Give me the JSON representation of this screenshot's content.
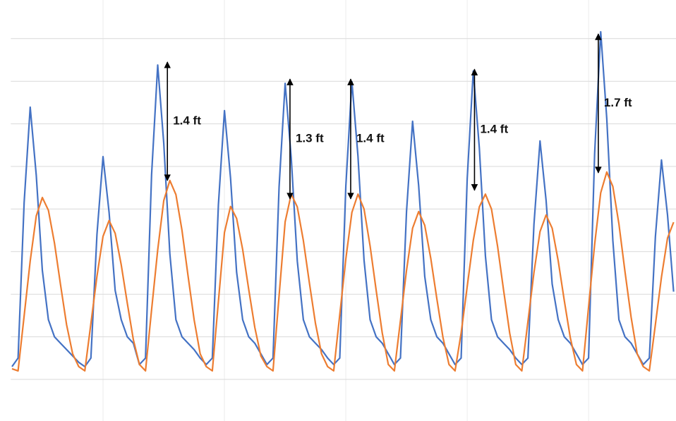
{
  "chart_data": {
    "type": "line",
    "x": [
      5,
      6,
      7,
      8,
      9,
      10,
      11,
      12,
      13,
      14,
      15,
      16,
      17,
      18,
      19,
      20,
      21,
      22,
      23,
      24,
      25,
      26,
      27,
      28,
      29,
      30,
      31,
      32,
      33,
      34,
      35,
      36,
      37,
      38,
      39,
      40,
      41,
      42,
      43,
      44,
      45,
      46,
      47,
      48,
      49,
      50,
      51,
      52,
      53,
      54,
      55,
      56,
      57,
      58,
      59,
      60,
      61,
      62,
      63,
      64,
      65,
      66,
      67,
      68,
      69,
      70,
      71,
      72,
      73,
      74,
      75,
      76,
      77,
      78,
      79,
      80,
      81,
      82,
      83,
      84,
      85,
      86,
      87,
      88,
      89,
      90,
      91,
      92,
      93,
      94,
      95,
      96,
      97,
      98,
      99,
      100,
      101,
      102,
      103,
      104,
      105,
      106,
      107,
      108,
      109,
      110,
      111,
      112,
      113,
      114
    ],
    "series": [
      {
        "color": "#4472c4",
        "values": [
          0.3,
          0.5,
          4.15,
          6.39,
          4.79,
          2.56,
          1.4,
          1.0,
          0.85,
          0.7,
          0.55,
          0.4,
          0.3,
          0.5,
          3.4,
          5.23,
          3.92,
          2.09,
          1.4,
          1.0,
          0.85,
          0.35,
          0.5,
          4.8,
          7.38,
          5.54,
          2.95,
          1.4,
          1.0,
          0.85,
          0.7,
          0.5,
          0.35,
          0.5,
          4.1,
          6.31,
          4.73,
          2.52,
          1.4,
          1.0,
          0.85,
          0.6,
          0.35,
          0.5,
          4.52,
          6.95,
          5.21,
          2.78,
          1.4,
          1.0,
          0.85,
          0.7,
          0.5,
          0.35,
          0.5,
          4.54,
          6.99,
          5.24,
          2.8,
          1.4,
          1.0,
          0.85,
          0.6,
          0.35,
          0.5,
          3.94,
          6.06,
          4.55,
          2.42,
          1.4,
          1.0,
          0.85,
          0.6,
          0.35,
          0.5,
          4.71,
          7.24,
          5.43,
          2.9,
          1.4,
          1.0,
          0.85,
          0.7,
          0.5,
          0.35,
          0.5,
          3.64,
          5.6,
          4.2,
          2.24,
          1.4,
          1.0,
          0.85,
          0.6,
          0.35,
          0.5,
          5.3,
          8.16,
          6.12,
          3.26,
          1.4,
          1.0,
          0.85,
          0.6,
          0.35,
          0.5,
          3.35,
          5.15,
          3.86,
          2.06
        ]
      },
      {
        "color": "#ed7d31",
        "values": [
          0.25,
          0.2,
          1.49,
          2.78,
          3.84,
          4.27,
          3.97,
          3.2,
          2.22,
          1.28,
          0.6,
          0.3,
          0.2,
          1.31,
          2.42,
          3.36,
          3.73,
          3.43,
          2.69,
          1.79,
          0.93,
          0.35,
          0.2,
          1.63,
          3.04,
          4.2,
          4.67,
          4.34,
          3.5,
          2.43,
          1.4,
          0.6,
          0.3,
          0.2,
          1.83,
          3.45,
          4.06,
          3.78,
          3.05,
          2.11,
          1.22,
          0.55,
          0.3,
          0.2,
          1.96,
          3.7,
          4.35,
          4.05,
          3.26,
          2.26,
          1.31,
          0.6,
          0.3,
          0.2,
          1.52,
          2.83,
          3.92,
          4.35,
          4.0,
          3.13,
          2.09,
          1.09,
          0.35,
          0.2,
          1.38,
          2.56,
          3.55,
          3.94,
          3.62,
          2.84,
          1.89,
          0.99,
          0.35,
          0.2,
          1.09,
          2.18,
          3.26,
          4.05,
          4.35,
          4.0,
          3.13,
          2.09,
          1.09,
          0.35,
          0.2,
          1.35,
          2.51,
          3.47,
          3.86,
          3.55,
          2.78,
          1.85,
          0.97,
          0.35,
          0.2,
          1.7,
          3.17,
          4.38,
          4.87,
          4.53,
          3.65,
          2.53,
          1.46,
          0.6,
          0.3,
          0.2,
          1.29,
          2.4,
          3.32,
          3.69
        ]
      }
    ],
    "xlim": [
      4.8,
      114.4
    ],
    "ylim": [
      0,
      8.5
    ],
    "xticks": [
      20,
      40,
      60,
      80,
      100
    ],
    "yticks": [
      0,
      1,
      2,
      3,
      4,
      5,
      6,
      7,
      8
    ],
    "grid": true,
    "annotations": [
      {
        "text": "1.4 ft",
        "x": 30.6,
        "y1": 7.45,
        "y2": 4.67
      },
      {
        "text": "1.3 ft",
        "x": 50.8,
        "y1": 7.05,
        "y2": 4.24
      },
      {
        "text": "1.4 ft",
        "x": 60.8,
        "y1": 7.05,
        "y2": 4.24
      },
      {
        "text": "1.4 ft",
        "x": 81.2,
        "y1": 7.28,
        "y2": 4.44
      },
      {
        "text": "1.7 ft",
        "x": 101.6,
        "y1": 8.11,
        "y2": 4.85
      }
    ]
  }
}
